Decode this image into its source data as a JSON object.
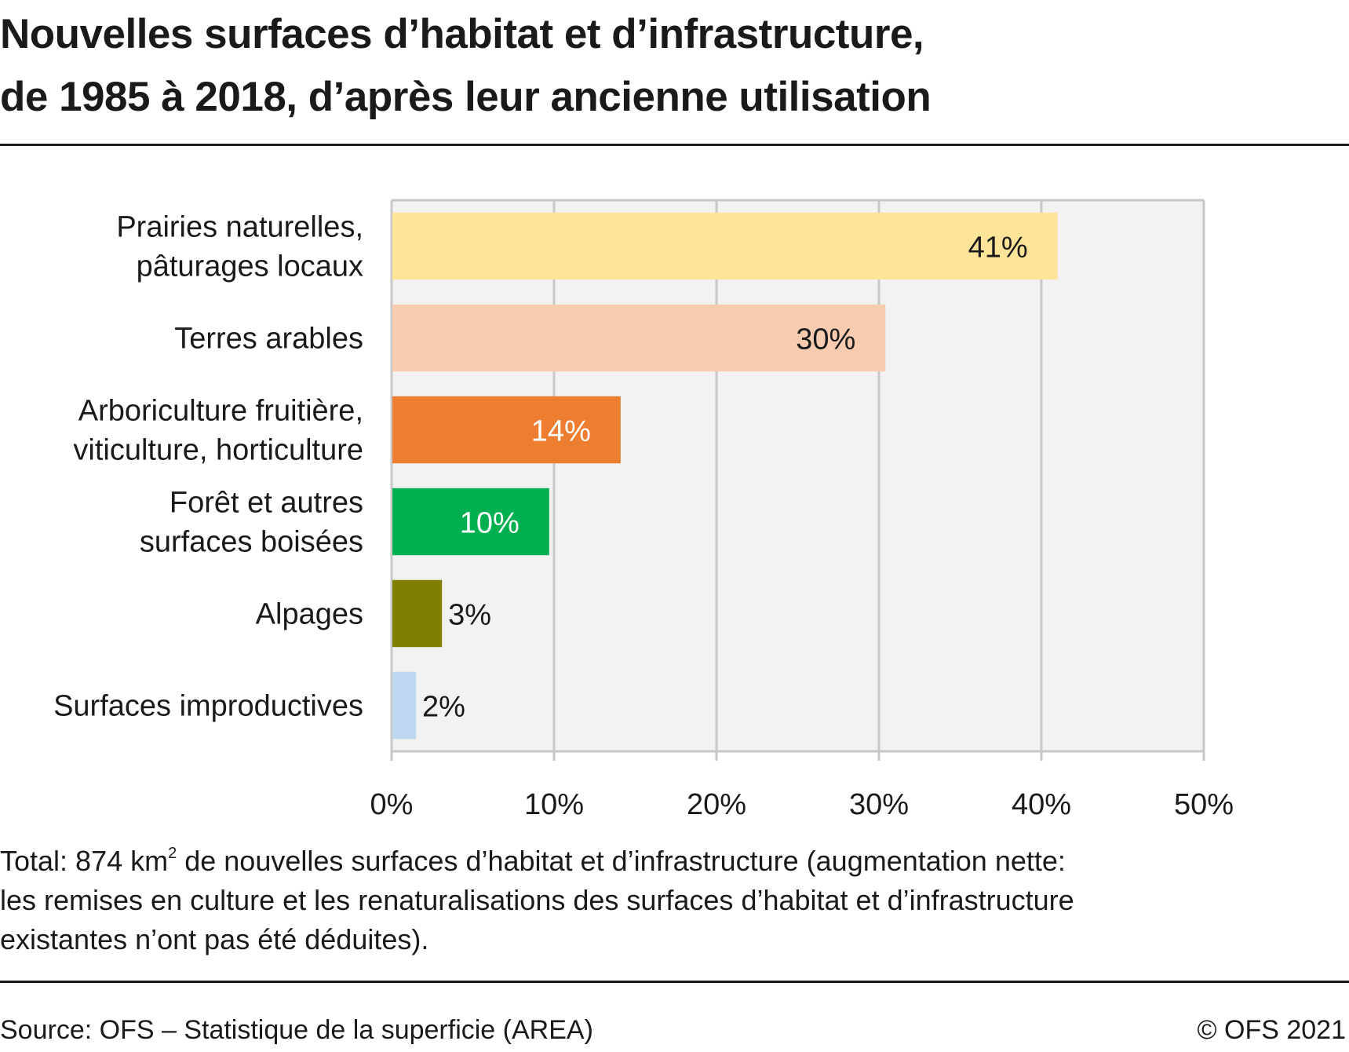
{
  "title_lines": [
    "Nouvelles surfaces d’habitat et d’infrastructure,",
    "de 1985 à 2018, d’après leur ancienne utilisation"
  ],
  "note": {
    "line1_a": "Total: 874 km",
    "line1_sup": "2",
    "line1_b": " de nouvelles surfaces d’habitat et d’infrastructure (augmentation nette:",
    "line2": "les remises en culture et les renaturalisations des surfaces d’habitat et d’infrastructure",
    "line3": "existantes n’ont pas été déduites)."
  },
  "footer": {
    "source": "Source: OFS – Statistique de la superficie (AREA)",
    "copyright": "© OFS 2021"
  },
  "chart_data": {
    "type": "bar",
    "orientation": "horizontal",
    "title": "",
    "xlabel": "",
    "ylabel": "",
    "xlim": [
      0,
      50
    ],
    "grid": true,
    "background": "#f2f2f2",
    "gridline_color": "#c8c8c8",
    "x_ticks": [
      0,
      10,
      20,
      30,
      40,
      50
    ],
    "x_tick_labels": [
      "0%",
      "10%",
      "20%",
      "30%",
      "40%",
      "50%"
    ],
    "categories": [
      [
        "Prairies naturelles,",
        "pâturages locaux"
      ],
      [
        "Terres arables"
      ],
      [
        "Arboriculture fruitière,",
        "viticulture, horticulture"
      ],
      [
        "Forêt et autres",
        "surfaces boisées"
      ],
      [
        "Alpages"
      ],
      [
        "Surfaces improductives"
      ]
    ],
    "values": [
      41,
      30.4,
      14.1,
      9.7,
      3.1,
      1.5
    ],
    "value_labels": [
      "41%",
      "30%",
      "14%",
      "10%",
      "3%",
      "2%"
    ],
    "colors": [
      "#fee499",
      "#f7cbaf",
      "#ed7d31",
      "#00b050",
      "#7f7f00",
      "#bdd7ee"
    ],
    "label_colors": [
      "#1a1a1a",
      "#1a1a1a",
      "#ffffff",
      "#ffffff",
      "#1a1a1a",
      "#1a1a1a"
    ],
    "label_position": [
      "inside",
      "inside",
      "inside",
      "inside",
      "outside",
      "outside"
    ]
  }
}
